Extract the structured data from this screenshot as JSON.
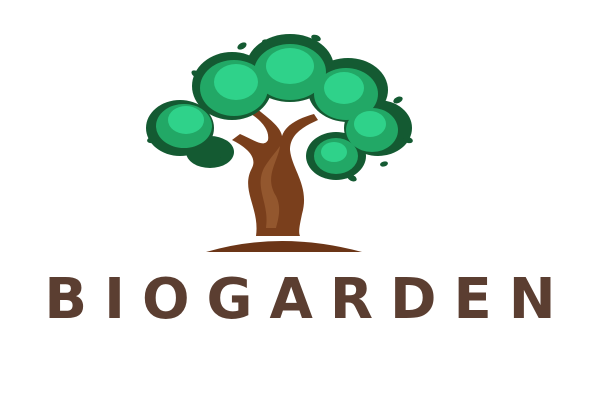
{
  "logo": {
    "wordmark": "BIOGARDEN",
    "icon": "tree-icon"
  },
  "colors": {
    "foliage_light": "#2fd28a",
    "foliage_mid": "#22a866",
    "foliage_dark": "#145a32",
    "trunk": "#7a3f1c",
    "ground": "#6b3517",
    "wordmark": "#5b3e31",
    "background": "#ffffff"
  }
}
